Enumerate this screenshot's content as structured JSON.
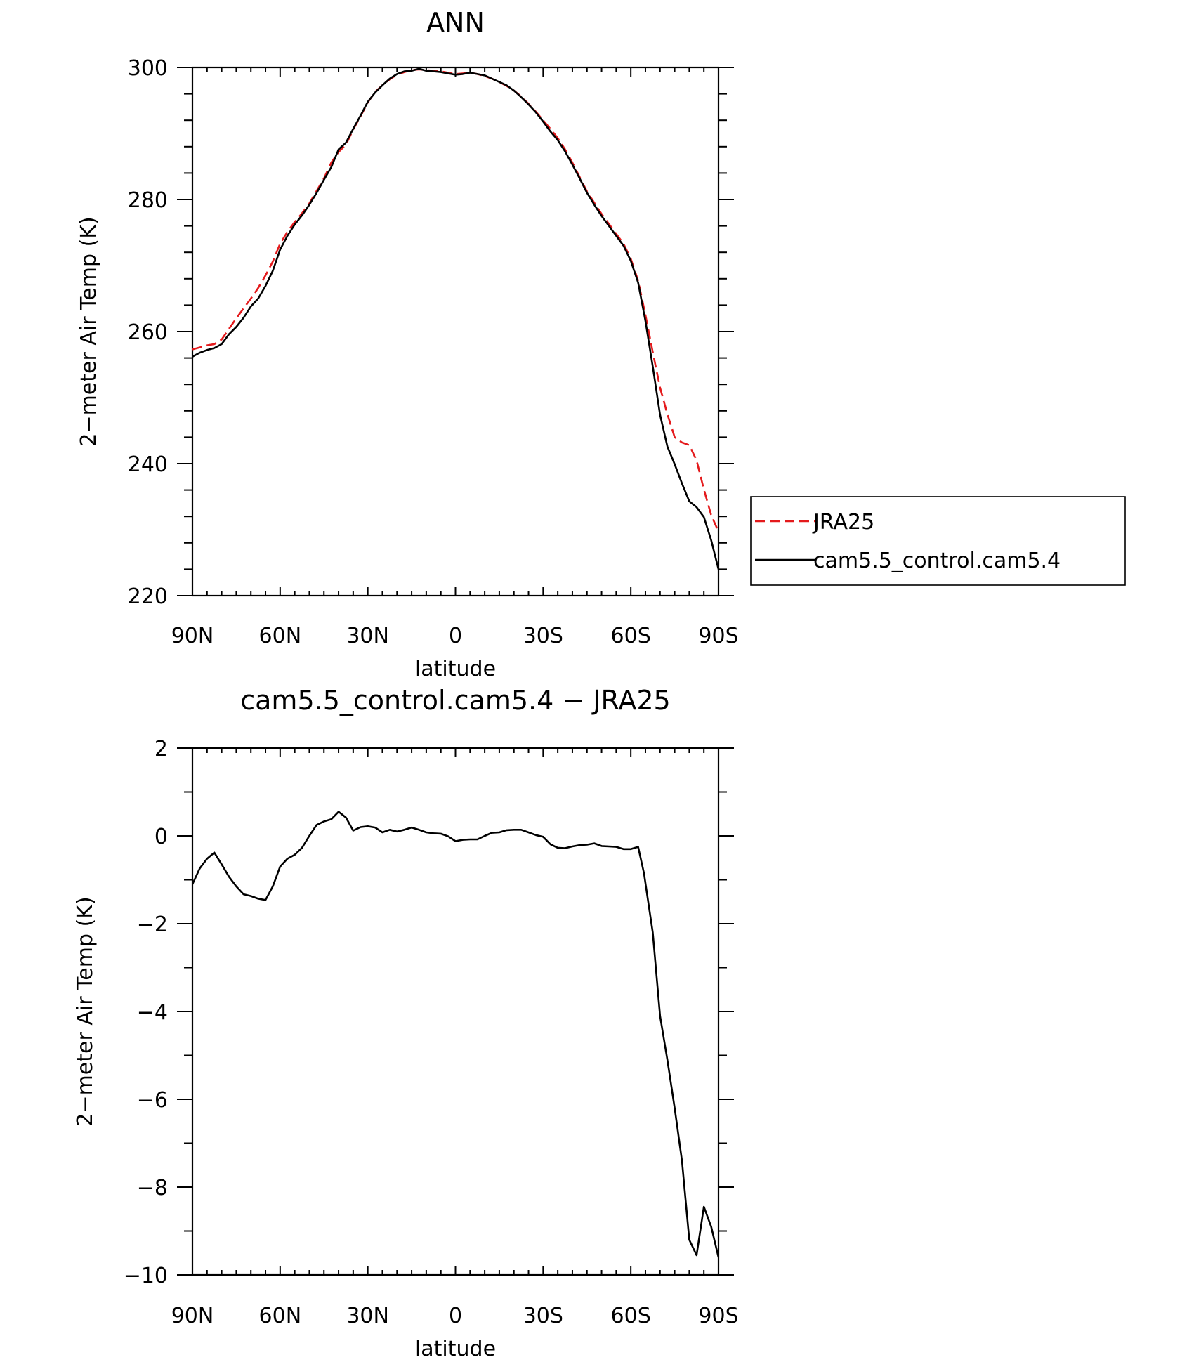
{
  "chart_data": [
    {
      "type": "line",
      "title": "ANN",
      "xlabel": "latitude",
      "ylabel": "2−meter Air Temp (K)",
      "xlim": [
        90,
        -90
      ],
      "ylim": [
        220,
        300
      ],
      "x_ticks": [
        {
          "value": 90,
          "label": "90N"
        },
        {
          "value": 60,
          "label": "60N"
        },
        {
          "value": 30,
          "label": "30N"
        },
        {
          "value": 0,
          "label": "0"
        },
        {
          "value": -30,
          "label": "30S"
        },
        {
          "value": -60,
          "label": "60S"
        },
        {
          "value": -90,
          "label": "90S"
        }
      ],
      "y_ticks": [
        {
          "value": 300,
          "label": "300"
        },
        {
          "value": 280,
          "label": "280"
        },
        {
          "value": 260,
          "label": "260"
        },
        {
          "value": 240,
          "label": "240"
        },
        {
          "value": 220,
          "label": "220"
        }
      ],
      "grid": false,
      "legend_position": "right",
      "series": [
        {
          "name": "JRA25",
          "color": "#e41a1c",
          "dash": "dashed",
          "x": [
            90,
            87.5,
            85,
            82.5,
            80,
            77.5,
            75,
            72.5,
            70,
            67.5,
            65,
            62.5,
            60,
            57.5,
            55,
            52.5,
            50,
            47.5,
            45,
            42.5,
            40,
            37.5,
            35,
            32.5,
            30,
            27.5,
            25,
            22.5,
            20,
            17.5,
            15,
            12.5,
            10,
            7.5,
            5,
            2.5,
            0,
            -2.5,
            -5,
            -7.5,
            -10,
            -12.5,
            -15,
            -17.5,
            -20,
            -22.5,
            -25,
            -27.5,
            -30,
            -32.5,
            -35,
            -37.5,
            -40,
            -42.5,
            -45,
            -47.5,
            -50,
            -52.5,
            -55,
            -57.5,
            -60,
            -62.5,
            -65,
            -67.5,
            -70,
            -72.5,
            -75,
            -77.5,
            -80,
            -82.5,
            -85,
            -87.5,
            -90
          ],
          "values": [
            257.3,
            257.6,
            257.9,
            258.1,
            258.8,
            260.4,
            262.0,
            263.5,
            265.0,
            266.6,
            268.5,
            270.6,
            273.3,
            275.1,
            276.6,
            277.9,
            279.4,
            281.3,
            283.2,
            285.6,
            287.2,
            288.3,
            290.6,
            292.6,
            294.7,
            296.3,
            297.3,
            298.2,
            298.9,
            299.3,
            299.6,
            299.7,
            299.6,
            299.5,
            299.4,
            299.2,
            299.0,
            299.1,
            299.2,
            299.0,
            298.7,
            298.3,
            297.8,
            297.2,
            296.5,
            295.6,
            294.5,
            293.3,
            292.0,
            290.7,
            289.3,
            287.6,
            285.6,
            283.4,
            281.2,
            279.5,
            277.8,
            276.3,
            274.8,
            273.3,
            271.0,
            267.7,
            262.5,
            256.9,
            251.5,
            247.5,
            244.0,
            243.2,
            242.8,
            240.5,
            236.1,
            232.2,
            229.7
          ]
        },
        {
          "name": "cam5.5_control.cam5.4",
          "color": "#000000",
          "dash": "solid",
          "x": [
            90,
            87.5,
            85,
            82.5,
            80,
            77.5,
            75,
            72.5,
            70,
            67.5,
            65,
            62.5,
            60,
            57.5,
            55,
            52.5,
            50,
            47.5,
            45,
            42.5,
            40,
            37.5,
            35,
            32.5,
            30,
            27.5,
            25,
            22.5,
            20,
            17.5,
            15,
            12.5,
            10,
            7.5,
            5,
            2.5,
            0,
            -2.5,
            -5,
            -7.5,
            -10,
            -12.5,
            -15,
            -17.5,
            -20,
            -22.5,
            -25,
            -27.5,
            -30,
            -32.5,
            -35,
            -37.5,
            -40,
            -42.5,
            -45,
            -47.5,
            -50,
            -52.5,
            -55,
            -57.5,
            -60,
            -62.5,
            -65,
            -67.5,
            -70,
            -72.5,
            -75,
            -77.5,
            -80,
            -82.5,
            -85,
            -87.5,
            -90
          ],
          "values": [
            256.2,
            256.8,
            257.2,
            257.5,
            258.1,
            259.6,
            260.7,
            262.1,
            263.8,
            265.0,
            266.9,
            269.2,
            272.4,
            274.5,
            276.2,
            277.6,
            279.2,
            281.0,
            283.0,
            284.9,
            287.6,
            288.6,
            290.7,
            292.7,
            294.8,
            296.2,
            297.3,
            298.3,
            299.0,
            299.4,
            299.5,
            299.8,
            299.5,
            299.4,
            299.3,
            299.1,
            298.9,
            299.0,
            299.2,
            299.0,
            298.8,
            298.3,
            297.8,
            297.3,
            296.5,
            295.5,
            294.4,
            293.2,
            291.8,
            290.3,
            289.0,
            287.3,
            285.3,
            283.2,
            281.0,
            279.2,
            277.5,
            276.0,
            274.5,
            273.0,
            270.7,
            267.4,
            261.6,
            254.7,
            247.4,
            242.6,
            239.9,
            237.0,
            234.3,
            233.4,
            231.9,
            228.4,
            224.0
          ]
        }
      ]
    },
    {
      "type": "line",
      "title": "cam5.5_control.cam5.4 − JRA25",
      "xlabel": "latitude",
      "ylabel": "2−meter Air Temp (K)",
      "xlim": [
        90,
        -90
      ],
      "ylim": [
        -10,
        2
      ],
      "x_ticks": [
        {
          "value": 90,
          "label": "90N"
        },
        {
          "value": 60,
          "label": "60N"
        },
        {
          "value": 30,
          "label": "30N"
        },
        {
          "value": 0,
          "label": "0"
        },
        {
          "value": -30,
          "label": "30S"
        },
        {
          "value": -60,
          "label": "60S"
        },
        {
          "value": -90,
          "label": "90S"
        }
      ],
      "y_ticks": [
        {
          "value": 2,
          "label": "2"
        },
        {
          "value": 0,
          "label": "0"
        },
        {
          "value": -2,
          "label": "−2"
        },
        {
          "value": -4,
          "label": "−4"
        },
        {
          "value": -6,
          "label": "−6"
        },
        {
          "value": -8,
          "label": "−8"
        },
        {
          "value": -10,
          "label": "−10"
        }
      ],
      "grid": false,
      "series": [
        {
          "color": "#000000",
          "dash": "solid",
          "x": [
            90,
            87.5,
            85,
            82.5,
            80,
            77.5,
            75,
            72.5,
            70,
            67.5,
            65,
            62.5,
            60,
            57.5,
            55,
            52.5,
            50,
            47.5,
            45,
            42.5,
            40,
            37.5,
            35,
            32.5,
            30,
            27.5,
            25,
            22.5,
            20,
            17.5,
            15,
            12.5,
            10,
            7.5,
            5,
            2.5,
            0,
            -2.5,
            -5,
            -7.5,
            -10,
            -12.5,
            -15,
            -17.5,
            -20,
            -22.5,
            -25,
            -27.5,
            -30,
            -32.5,
            -35,
            -37.5,
            -40,
            -42.5,
            -45,
            -47.5,
            -50,
            -52.5,
            -55,
            -57.5,
            -60,
            -62.5,
            -64.5,
            -67.5,
            -70,
            -72.5,
            -75,
            -77.5,
            -80,
            -82.5,
            -85,
            -87.5,
            -90
          ],
          "values": [
            -1.1,
            -0.74,
            -0.52,
            -0.38,
            -0.65,
            -0.93,
            -1.15,
            -1.33,
            -1.37,
            -1.43,
            -1.46,
            -1.15,
            -0.7,
            -0.52,
            -0.43,
            -0.27,
            0.0,
            0.25,
            0.33,
            0.38,
            0.55,
            0.42,
            0.12,
            0.2,
            0.22,
            0.19,
            0.08,
            0.14,
            0.1,
            0.14,
            0.19,
            0.14,
            0.08,
            0.06,
            0.05,
            -0.01,
            -0.12,
            -0.09,
            -0.08,
            -0.08,
            0.0,
            0.07,
            0.08,
            0.13,
            0.14,
            0.14,
            0.08,
            0.02,
            -0.02,
            -0.19,
            -0.27,
            -0.28,
            -0.24,
            -0.21,
            -0.2,
            -0.17,
            -0.23,
            -0.24,
            -0.25,
            -0.3,
            -0.3,
            -0.25,
            -0.85,
            -2.2,
            -4.1,
            -5.1,
            -6.2,
            -7.4,
            -9.2,
            -9.55,
            -8.45,
            -8.9,
            -9.6
          ]
        }
      ]
    }
  ]
}
